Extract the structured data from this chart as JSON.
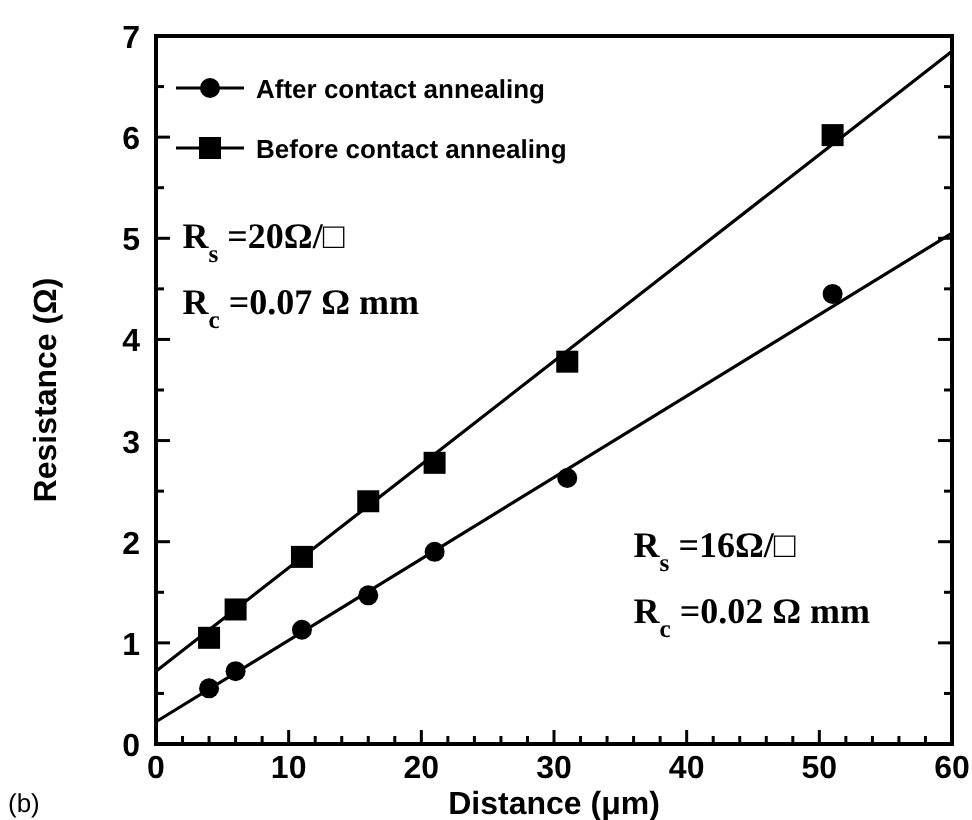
{
  "chart_data": {
    "type": "scatter",
    "xlabel": "Distance (μm)",
    "ylabel": "Resistance (Ω)",
    "xlim": [
      0,
      60
    ],
    "ylim": [
      0,
      7
    ],
    "xticks": [
      0,
      {
        "value": 2,
        "label": null
      },
      {
        "value": 4,
        "label": null
      },
      {
        "value": 6,
        "label": null
      },
      {
        "value": 8,
        "label": null
      },
      10,
      {
        "value": 12,
        "label": null
      },
      {
        "value": 14,
        "label": null
      },
      {
        "value": 16,
        "label": null
      },
      {
        "value": 18,
        "label": null
      },
      20,
      {
        "value": 22,
        "label": null
      },
      {
        "value": 24,
        "label": null
      },
      {
        "value": 26,
        "label": null
      },
      {
        "value": 28,
        "label": null
      },
      30,
      {
        "value": 32,
        "label": null
      },
      {
        "value": 34,
        "label": null
      },
      {
        "value": 36,
        "label": null
      },
      {
        "value": 38,
        "label": null
      },
      40,
      {
        "value": 42,
        "label": null
      },
      {
        "value": 44,
        "label": null
      },
      {
        "value": 46,
        "label": null
      },
      {
        "value": 48,
        "label": null
      },
      50,
      {
        "value": 52,
        "label": null
      },
      {
        "value": 54,
        "label": null
      },
      {
        "value": 56,
        "label": null
      },
      {
        "value": 58,
        "label": null
      },
      60
    ],
    "yticks": [
      0,
      {
        "value": 0.5,
        "label": null
      },
      1,
      {
        "value": 1.5,
        "label": null
      },
      2,
      {
        "value": 2.5,
        "label": null
      },
      3,
      {
        "value": 3.5,
        "label": null
      },
      4,
      {
        "value": 4.5,
        "label": null
      },
      5,
      {
        "value": 5.5,
        "label": null
      },
      6,
      {
        "value": 6.5,
        "label": null
      },
      7
    ],
    "grid": false,
    "legend": "top left",
    "series": [
      {
        "name": "After contact annealing",
        "marker": "circle",
        "color": "#000000",
        "x": [
          4,
          6,
          11,
          16,
          21,
          31,
          51
        ],
        "values": [
          0.55,
          0.72,
          1.13,
          1.47,
          1.9,
          2.63,
          4.45
        ]
      },
      {
        "name": "Before contact annealing",
        "marker": "square",
        "color": "#000000",
        "x": [
          4,
          6,
          11,
          16,
          21,
          31,
          51
        ],
        "values": [
          1.05,
          1.33,
          1.85,
          2.4,
          2.78,
          3.78,
          6.02
        ]
      },
      {
        "type": "line",
        "marker": "none",
        "color": "#000000",
        "x": [
          0,
          60
        ],
        "values": [
          0.22,
          5.05
        ]
      },
      {
        "type": "line",
        "marker": "none",
        "color": "#000000",
        "x": [
          0,
          60
        ],
        "values": [
          0.72,
          6.85
        ]
      }
    ],
    "annotations": [
      "R$_{s}$ =20Ω/□",
      "R$_{c}$ =0.07 Ω mm",
      "R$_{s}$ =16Ω/□",
      "R$_{c}$ =0.02 Ω mm",
      "(b)"
    ]
  }
}
